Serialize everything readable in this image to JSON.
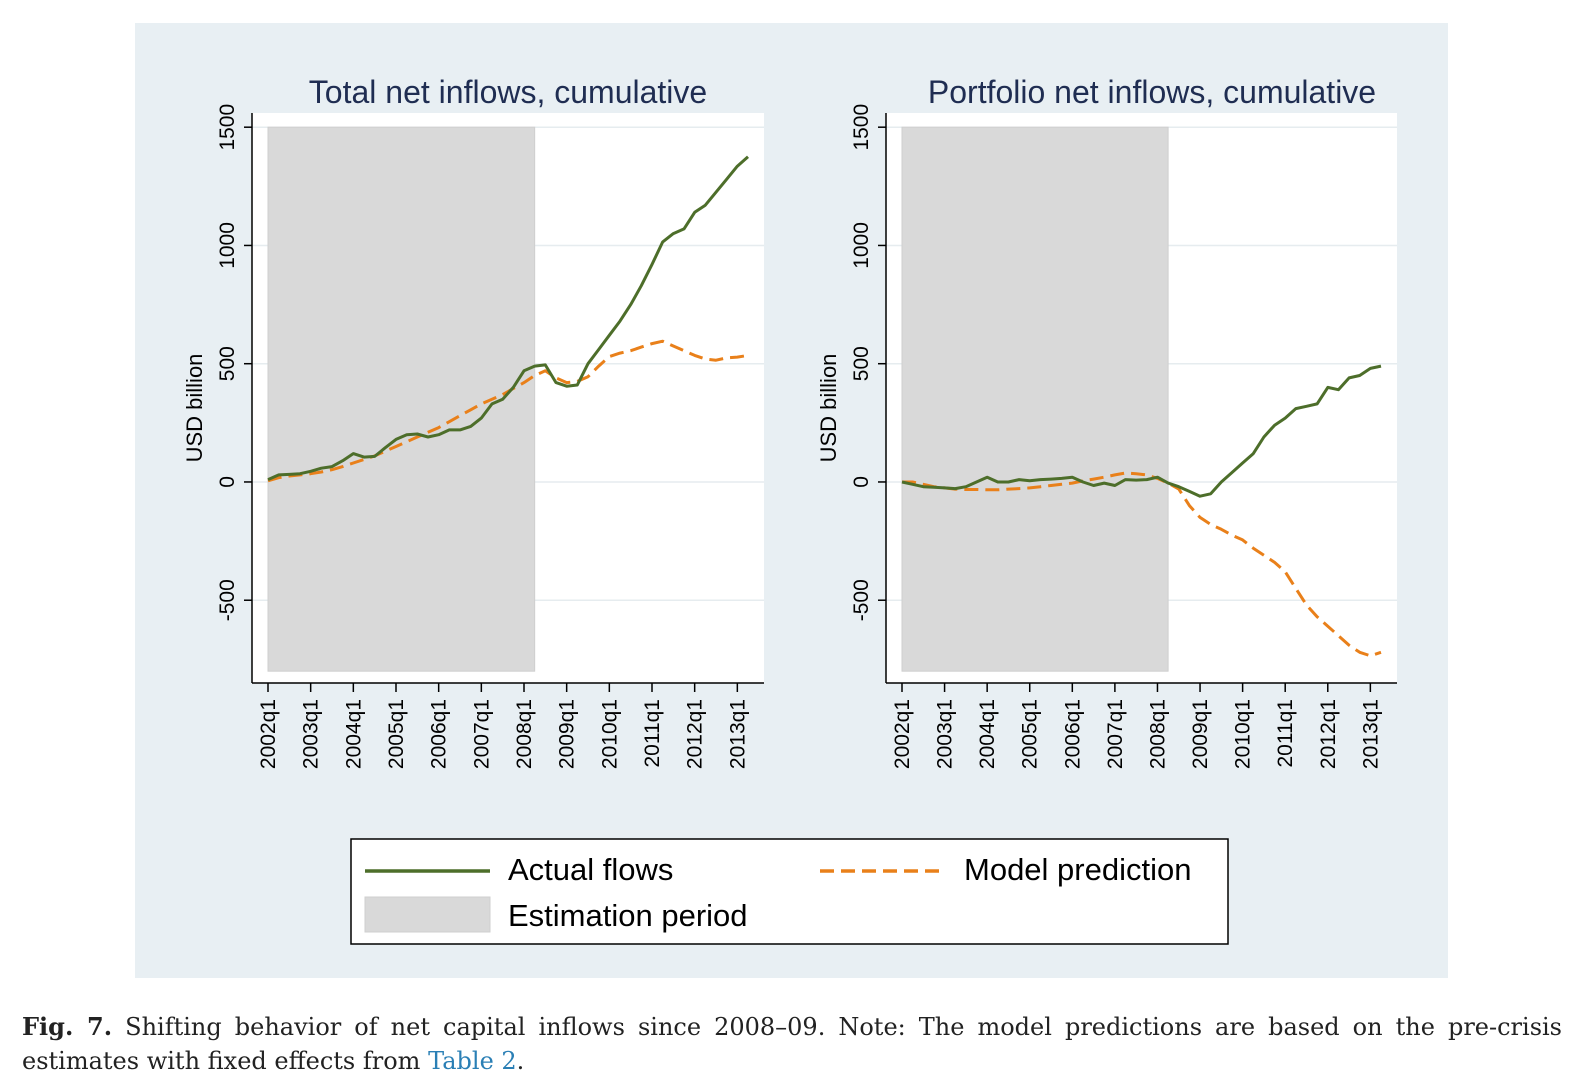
{
  "colors": {
    "panel_background": "#e8eff3",
    "plot_background": "#ffffff",
    "estimation_shade": "#d9d9d9",
    "actual": "#4d6e2a",
    "model": "#e9801a",
    "gridline": "#e6ecef",
    "title_text": "#1f2d52"
  },
  "legend": {
    "actual_label": "Actual flows",
    "model_label": "Model prediction",
    "estimation_label": "Estimation period"
  },
  "caption": {
    "fig_label": "Fig. 7.",
    "text": " Shifting behavior of net capital inflows since 2008–09. Note: The model predictions are based on the pre-crisis estimates with fixed effects from ",
    "link_text": "Table 2",
    "end": "."
  },
  "chart_data": [
    {
      "type": "line",
      "title": "Total net inflows, cumulative",
      "ylabel": "USD billion",
      "xlabel": "",
      "ylim": [
        -850,
        1560
      ],
      "yticks": [
        -500,
        0,
        500,
        1000,
        1500
      ],
      "xtick_labels": [
        "2002q1",
        "2003q1",
        "2004q1",
        "2005q1",
        "2006q1",
        "2007q1",
        "2008q1",
        "2009q1",
        "2010q1",
        "2011q1",
        "2012q1",
        "2013q1"
      ],
      "x_start": "2002q1",
      "x_end": "2013q2",
      "estimation_period": [
        "2002q1",
        "2008q2"
      ],
      "grid": true,
      "series": [
        {
          "name": "Actual flows",
          "values": [
            10,
            30,
            32,
            35,
            45,
            58,
            65,
            90,
            120,
            105,
            108,
            145,
            180,
            200,
            203,
            190,
            200,
            220,
            220,
            235,
            270,
            330,
            350,
            400,
            470,
            490,
            495,
            420,
            405,
            410,
            500,
            560,
            620,
            680,
            750,
            830,
            920,
            1015,
            1050,
            1070,
            1140,
            1170,
            1225,
            1280,
            1335,
            1375
          ]
        },
        {
          "name": "Model prediction",
          "values": [
            5,
            18,
            25,
            30,
            35,
            42,
            52,
            65,
            80,
            95,
            110,
            130,
            150,
            170,
            190,
            210,
            230,
            255,
            280,
            305,
            330,
            350,
            370,
            395,
            420,
            450,
            470,
            440,
            420,
            425,
            445,
            490,
            530,
            545,
            555,
            570,
            585,
            595,
            575,
            555,
            535,
            520,
            515,
            525,
            528,
            535
          ]
        }
      ]
    },
    {
      "type": "line",
      "title": "Portfolio net inflows, cumulative",
      "ylabel": "USD billion",
      "xlabel": "",
      "ylim": [
        -850,
        1560
      ],
      "yticks": [
        -500,
        0,
        500,
        1000,
        1500
      ],
      "xtick_labels": [
        "2002q1",
        "2003q1",
        "2004q1",
        "2005q1",
        "2006q1",
        "2007q1",
        "2008q1",
        "2009q1",
        "2010q1",
        "2011q1",
        "2012q1",
        "2013q1"
      ],
      "x_start": "2002q1",
      "x_end": "2013q2",
      "estimation_period": [
        "2002q1",
        "2008q2"
      ],
      "grid": true,
      "series": [
        {
          "name": "Actual flows",
          "values": [
            0,
            -10,
            -20,
            -22,
            -25,
            -28,
            -20,
            0,
            20,
            0,
            0,
            10,
            5,
            10,
            12,
            15,
            20,
            0,
            -15,
            -5,
            -15,
            10,
            8,
            10,
            20,
            -5,
            -20,
            -40,
            -60,
            -50,
            0,
            40,
            80,
            120,
            190,
            240,
            270,
            310,
            320,
            330,
            400,
            390,
            440,
            450,
            480,
            490
          ]
        },
        {
          "name": "Model prediction",
          "values": [
            0,
            0,
            -10,
            -20,
            -25,
            -30,
            -32,
            -32,
            -33,
            -33,
            -30,
            -28,
            -25,
            -20,
            -15,
            -10,
            -5,
            5,
            12,
            20,
            30,
            38,
            35,
            30,
            15,
            -5,
            -30,
            -100,
            -150,
            -180,
            -200,
            -225,
            -245,
            -280,
            -310,
            -340,
            -380,
            -450,
            -520,
            -570,
            -610,
            -650,
            -690,
            -720,
            -735,
            -720
          ]
        }
      ]
    }
  ]
}
